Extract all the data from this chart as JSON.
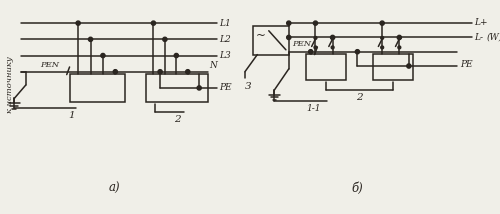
{
  "bg_color": "#f0efe8",
  "line_color": "#2a2520",
  "lw": 1.1,
  "title_a": "а)",
  "title_b": "б)",
  "label_L1": "L1",
  "label_L2": "L2",
  "label_L3": "L3",
  "label_N": "N",
  "label_PE": "PE",
  "label_PEN": "PEN",
  "label_1": "1",
  "label_2": "2",
  "label_3": "3",
  "label_11": "1-1",
  "label_Lplus": "L+",
  "label_Lminus": "L-",
  "label_W": "(W)",
  "label_source": "к источнику",
  "font_size": 6.5
}
